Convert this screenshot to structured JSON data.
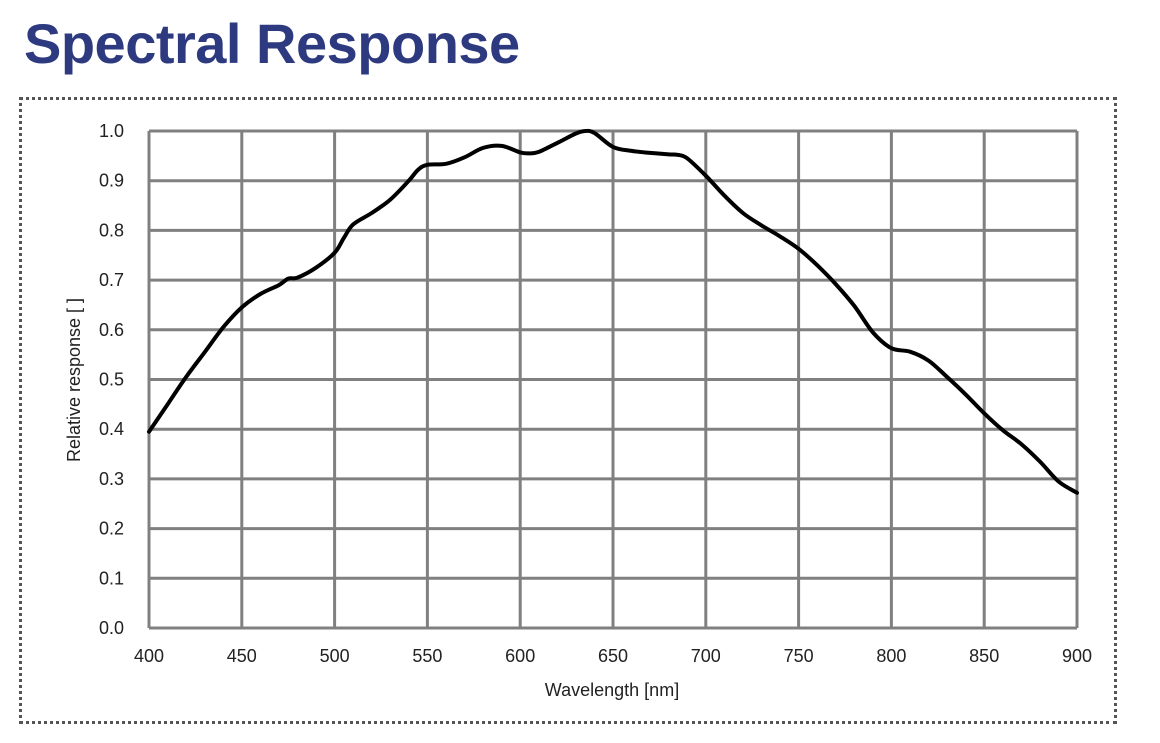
{
  "page": {
    "title": "Spectral Response"
  },
  "chart_data": {
    "type": "line",
    "title": "Spectral Response",
    "xlabel": "Wavelength [nm]",
    "ylabel": "Relative response [ ]",
    "xlim": [
      400,
      900
    ],
    "ylim": [
      0.0,
      1.0
    ],
    "xticks": [
      400,
      450,
      500,
      550,
      600,
      650,
      700,
      750,
      800,
      850,
      900
    ],
    "yticks": [
      0.0,
      0.1,
      0.2,
      0.3,
      0.4,
      0.5,
      0.6,
      0.7,
      0.8,
      0.9,
      1.0
    ],
    "xtick_labels": [
      "400",
      "450",
      "500",
      "550",
      "600",
      "650",
      "700",
      "750",
      "800",
      "850",
      "900"
    ],
    "ytick_labels": [
      "0.0",
      "0.1",
      "0.2",
      "0.3",
      "0.4",
      "0.5",
      "0.6",
      "0.7",
      "0.8",
      "0.9",
      "1.0"
    ],
    "grid": true,
    "legend": false,
    "line_color": "#000000",
    "grid_color": "#808080",
    "series": [
      {
        "x": [
          400,
          410,
          420,
          430,
          440,
          450,
          460,
          470,
          475,
          480,
          490,
          500,
          505,
          510,
          520,
          530,
          540,
          545,
          550,
          560,
          570,
          580,
          590,
          600,
          605,
          610,
          620,
          630,
          635,
          640,
          650,
          660,
          670,
          680,
          685,
          690,
          700,
          710,
          720,
          730,
          740,
          750,
          760,
          770,
          780,
          790,
          800,
          810,
          820,
          830,
          840,
          850,
          860,
          870,
          880,
          890,
          900
        ],
        "y": [
          0.395,
          0.45,
          0.505,
          0.555,
          0.605,
          0.645,
          0.672,
          0.69,
          0.703,
          0.705,
          0.725,
          0.755,
          0.785,
          0.812,
          0.835,
          0.862,
          0.9,
          0.922,
          0.932,
          0.934,
          0.947,
          0.966,
          0.97,
          0.957,
          0.955,
          0.958,
          0.976,
          0.995,
          1.0,
          0.996,
          0.968,
          0.96,
          0.956,
          0.953,
          0.952,
          0.945,
          0.91,
          0.87,
          0.835,
          0.81,
          0.788,
          0.763,
          0.73,
          0.692,
          0.648,
          0.595,
          0.563,
          0.556,
          0.538,
          0.505,
          0.47,
          0.432,
          0.398,
          0.37,
          0.335,
          0.295,
          0.272
        ]
      }
    ]
  }
}
